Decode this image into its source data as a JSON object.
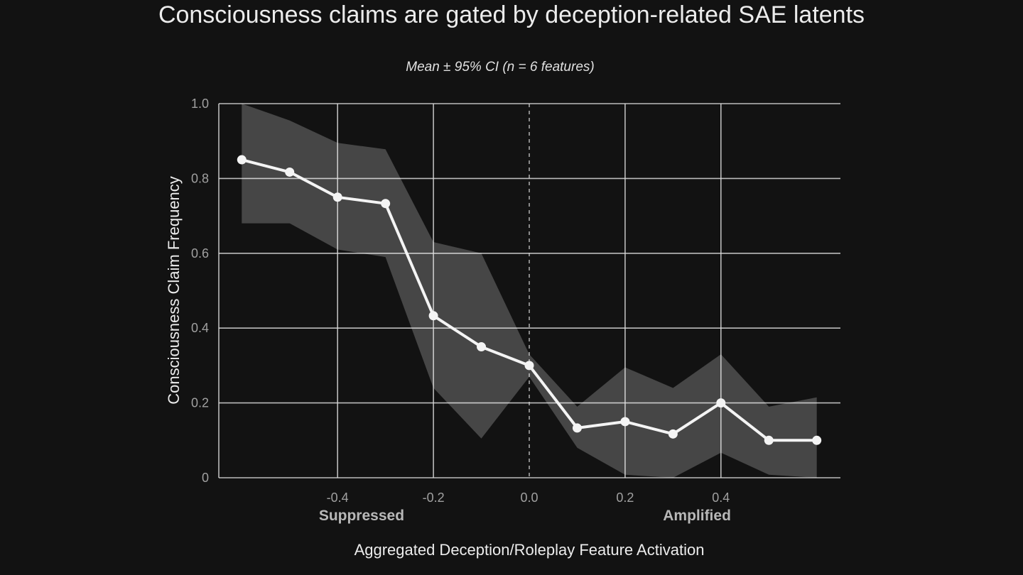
{
  "chart_data": {
    "type": "line",
    "title": "Consciousness claims are gated by deception-related SAE latents",
    "subtitle": "Mean ± 95% CI (n = 6 features)",
    "xlabel": "Aggregated Deception/Roleplay Feature Activation",
    "ylabel": "Consciousness Claim Frequency",
    "xlim": [
      -0.65,
      0.65
    ],
    "ylim": [
      0,
      1.0
    ],
    "x_ticks": [
      -0.4,
      -0.2,
      0.0,
      0.2,
      0.4
    ],
    "x_tick_labels": [
      "-0.4",
      "-0.2",
      "0.0",
      "0.2",
      "0.4"
    ],
    "y_ticks": [
      0,
      0.2,
      0.4,
      0.6,
      0.8,
      1.0
    ],
    "y_tick_labels": [
      "0",
      "0.2",
      "0.4",
      "0.6",
      "0.8",
      "1.0"
    ],
    "grid": true,
    "reference_line_x": 0.0,
    "region_labels": [
      {
        "text": "Suppressed",
        "x": -0.35
      },
      {
        "text": "Amplified",
        "x": 0.35
      }
    ],
    "series": [
      {
        "x": [
          -0.6,
          -0.5,
          -0.4,
          -0.3,
          -0.2,
          -0.1,
          0.0,
          0.1,
          0.2,
          0.3,
          0.4,
          0.5,
          0.6
        ],
        "values": [
          0.85,
          0.817,
          0.75,
          0.733,
          0.433,
          0.35,
          0.3,
          0.133,
          0.15,
          0.117,
          0.2,
          0.1,
          0.1
        ],
        "ci_lower": [
          0.68,
          0.68,
          0.61,
          0.59,
          0.24,
          0.105,
          0.27,
          0.08,
          0.008,
          0.0,
          0.067,
          0.008,
          0.0
        ],
        "ci_upper": [
          1.0,
          0.955,
          0.895,
          0.878,
          0.63,
          0.6,
          0.33,
          0.19,
          0.295,
          0.24,
          0.33,
          0.19,
          0.215
        ]
      }
    ],
    "colors": {
      "background": "#121212",
      "line": "#f4f4f4",
      "band": "#ffffff",
      "grid": "#d9d9d9",
      "text": "#e8e8e8",
      "tick_text": "#a0a0a0"
    }
  }
}
